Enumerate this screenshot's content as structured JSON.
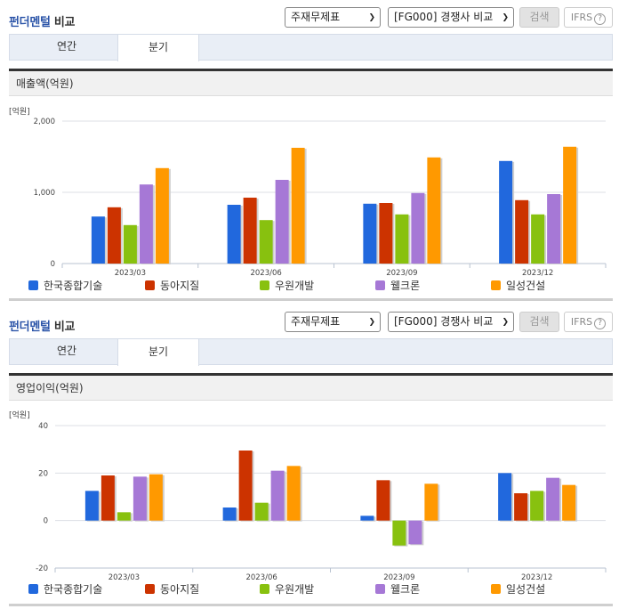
{
  "header": {
    "title_blue": "펀더멘털",
    "title_rest": " 비교",
    "select1": "주재무제표",
    "select2": "[FG000] 경쟁사 비교",
    "search_label": "검색",
    "ifrs_label": "IFRS",
    "help_glyph": "?"
  },
  "tabs": [
    {
      "label": "연간",
      "active": false
    },
    {
      "label": "분기",
      "active": true
    }
  ],
  "colors": {
    "series": [
      "#2168dd",
      "#cc3300",
      "#88c10f",
      "#a678d6",
      "#ff9900"
    ],
    "accent": "#2b54a8"
  },
  "sections": [
    {
      "chart_title": "매출액(억원)",
      "unit": "[억원]"
    },
    {
      "chart_title": "영업이익(억원)",
      "unit": "[억원]"
    }
  ],
  "legend": [
    "한국종합기술",
    "동아지질",
    "우원개발",
    "웰크론",
    "일성건설"
  ],
  "chart_data": [
    {
      "type": "bar",
      "title": "매출액(억원)",
      "ylabel": "[억원]",
      "categories": [
        "2023/03",
        "2023/06",
        "2023/09",
        "2023/12"
      ],
      "yticks": [
        "0",
        "1,000",
        "2,000"
      ],
      "ylim": [
        0,
        2000
      ],
      "grid": true,
      "legend_position": "bottom",
      "series": [
        {
          "name": "한국종합기술",
          "values": [
            660,
            825,
            840,
            1440
          ]
        },
        {
          "name": "동아지질",
          "values": [
            790,
            925,
            850,
            890
          ]
        },
        {
          "name": "우원개발",
          "values": [
            540,
            610,
            690,
            690
          ]
        },
        {
          "name": "웰크론",
          "values": [
            1110,
            1175,
            990,
            975
          ]
        },
        {
          "name": "일성건설",
          "values": [
            1340,
            1625,
            1490,
            1640
          ]
        }
      ]
    },
    {
      "type": "bar",
      "title": "영업이익(억원)",
      "ylabel": "[억원]",
      "categories": [
        "2023/03",
        "2023/06",
        "2023/09",
        "2023/12"
      ],
      "yticks": [
        "-20",
        "0",
        "20",
        "40"
      ],
      "ylim": [
        -20,
        40
      ],
      "grid": true,
      "legend_position": "bottom",
      "series": [
        {
          "name": "한국종합기술",
          "values": [
            12.5,
            5.5,
            2,
            20
          ]
        },
        {
          "name": "동아지질",
          "values": [
            19,
            29.5,
            17,
            11.5
          ]
        },
        {
          "name": "우원개발",
          "values": [
            3.5,
            7.5,
            -10.5,
            12.5
          ]
        },
        {
          "name": "웰크론",
          "values": [
            18.5,
            21,
            -10,
            18
          ]
        },
        {
          "name": "일성건설",
          "values": [
            19.5,
            23,
            15.5,
            15
          ]
        }
      ]
    }
  ]
}
